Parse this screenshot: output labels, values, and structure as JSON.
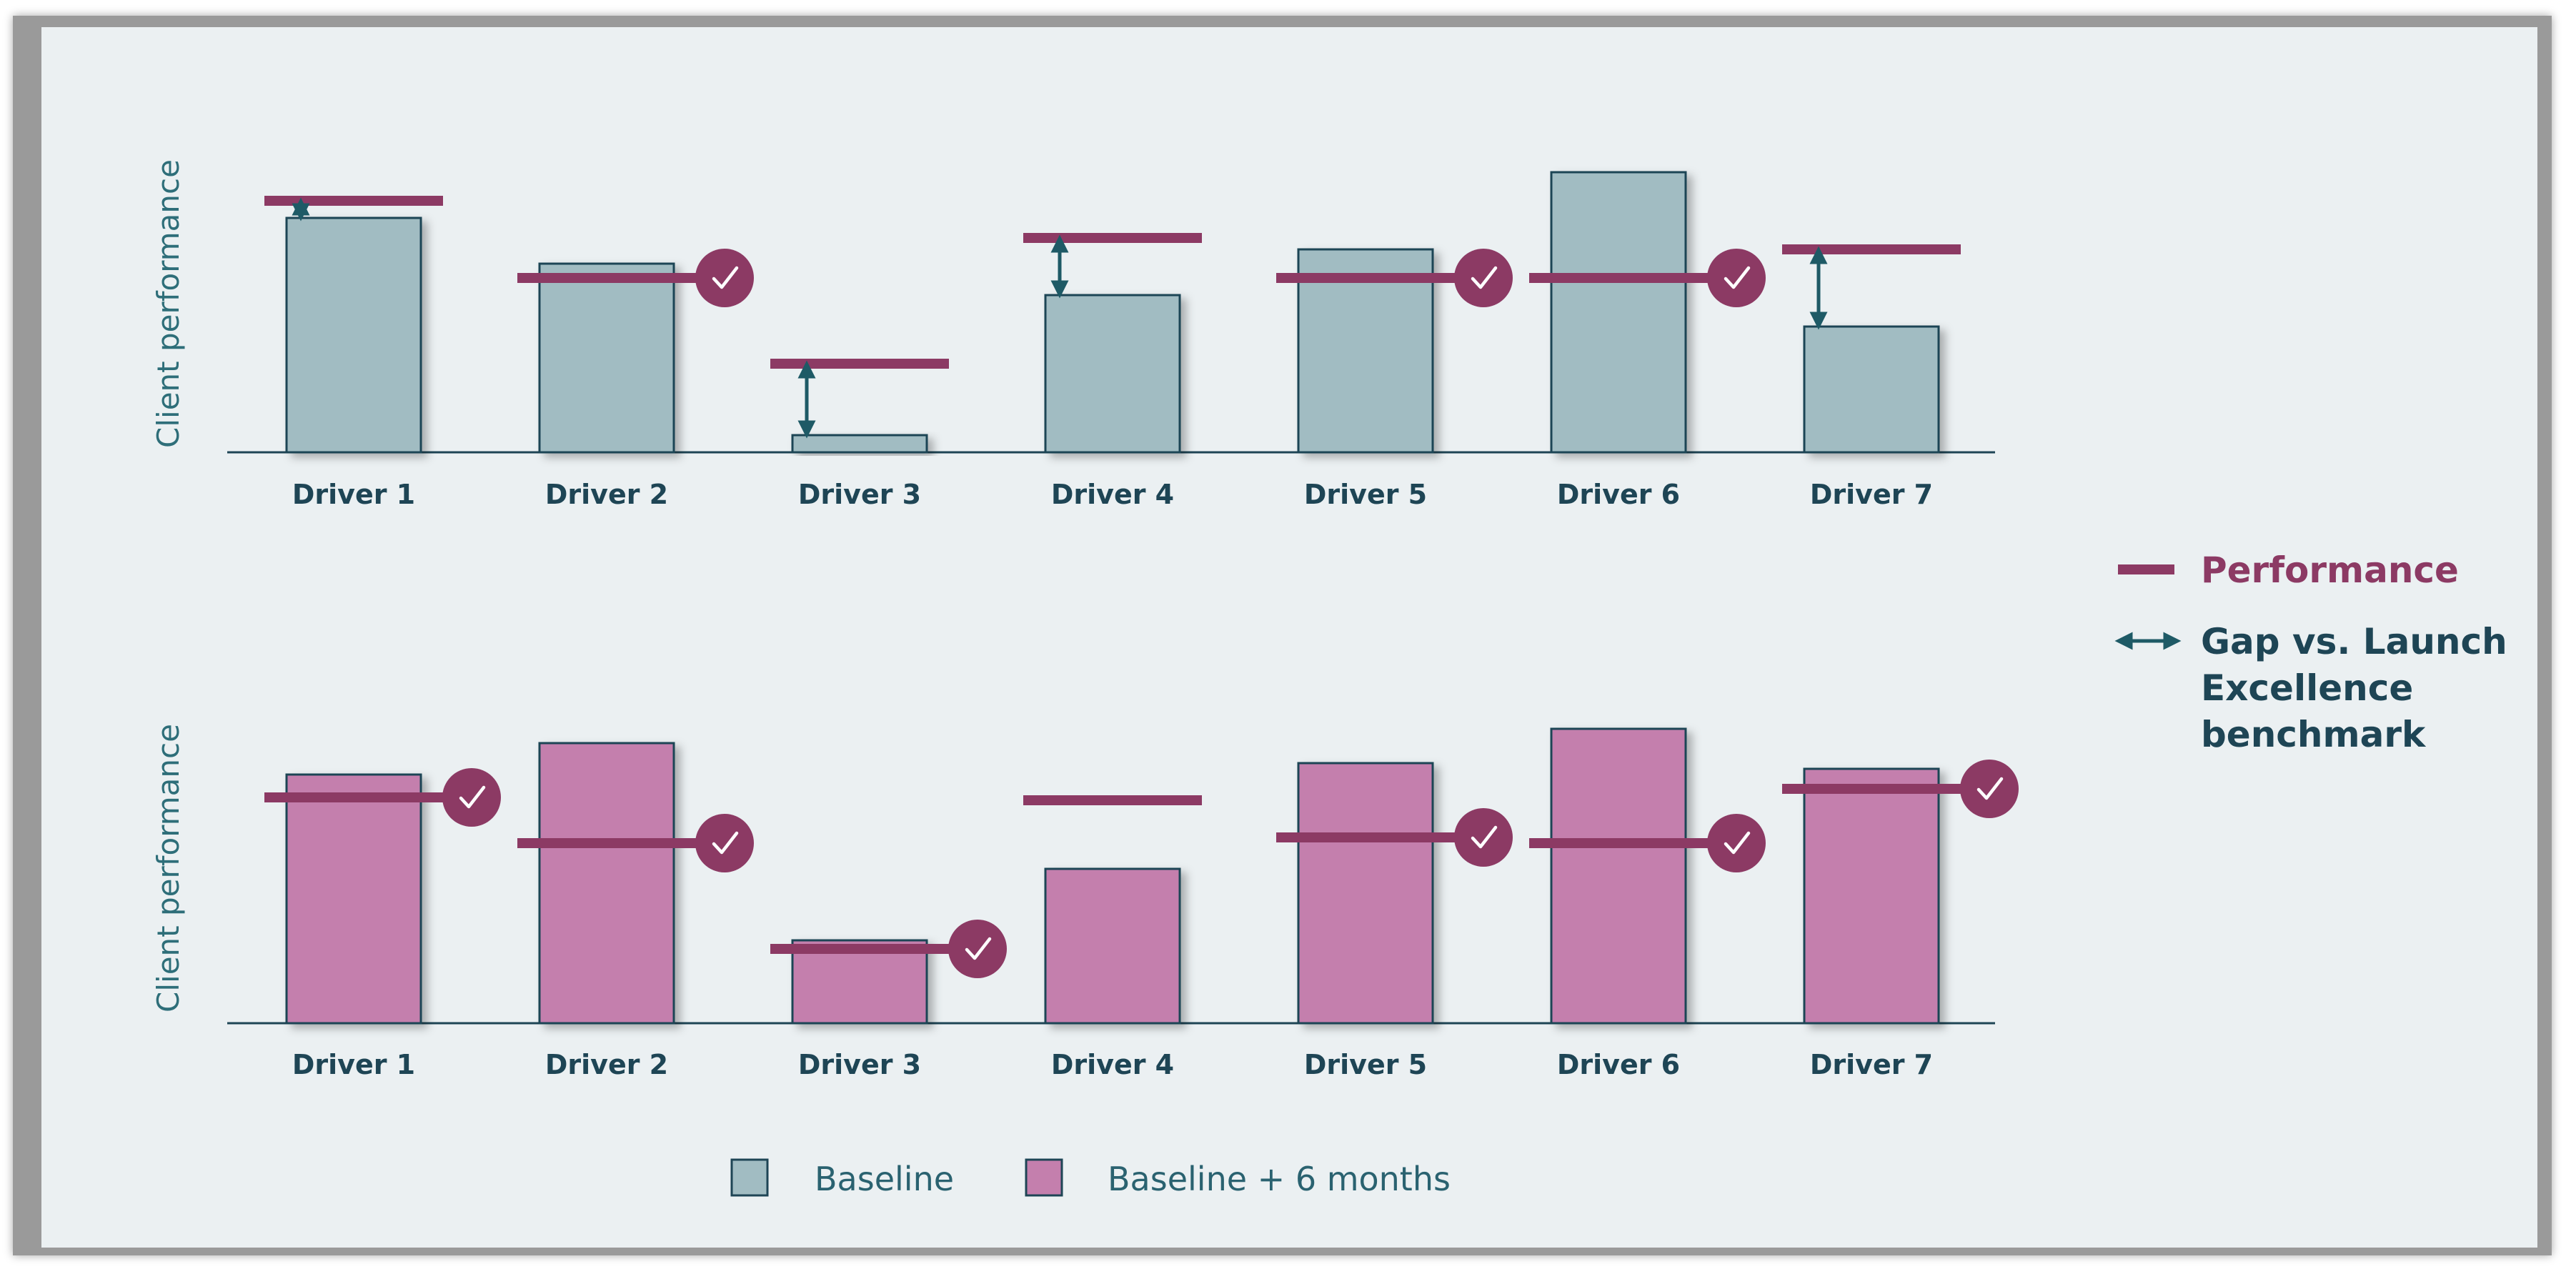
{
  "chart_data": [
    {
      "type": "bar",
      "panel": "top",
      "series_name": "Baseline",
      "categories": [
        "Driver 1",
        "Driver 2",
        "Driver 3",
        "Driver 4",
        "Driver 5",
        "Driver 6",
        "Driver 7"
      ],
      "values": [
        82,
        66,
        6,
        55,
        71,
        98,
        44
      ],
      "performance": [
        88,
        61,
        31,
        75,
        61,
        61,
        71
      ],
      "benchmark_met": [
        false,
        true,
        false,
        false,
        true,
        true,
        false
      ],
      "gap_arrow": [
        true,
        false,
        true,
        true,
        false,
        false,
        true
      ],
      "ylabel": "Client performance",
      "ylim": [
        0,
        100
      ]
    },
    {
      "type": "bar",
      "panel": "bottom",
      "series_name": "Baseline + 6 months",
      "categories": [
        "Driver 1",
        "Driver 2",
        "Driver 3",
        "Driver 4",
        "Driver 5",
        "Driver 6",
        "Driver 7"
      ],
      "values": [
        87,
        98,
        29,
        54,
        91,
        103,
        89
      ],
      "performance": [
        79,
        63,
        26,
        78,
        65,
        63,
        82
      ],
      "benchmark_met": [
        true,
        true,
        true,
        false,
        true,
        true,
        true
      ],
      "gap_arrow": [
        false,
        false,
        false,
        false,
        false,
        false,
        false
      ],
      "ylabel": "Client performance",
      "ylim": [
        0,
        100
      ]
    }
  ],
  "legend": {
    "performance": "Performance",
    "gap_line1": "Gap vs. Launch",
    "gap_line2": "Excellence",
    "gap_line3": "benchmark",
    "baseline": "Baseline",
    "baseline_6m": "Baseline + 6 months"
  },
  "colors": {
    "baseline_fill": "#a1bcc2",
    "baseline_6m_fill": "#c47fad",
    "bar_stroke": "#1e4555",
    "performance": "#8c3a64",
    "gap_arrow": "#1e5a66",
    "axis": "#1e4555",
    "check_badge": "#8c3a64"
  }
}
